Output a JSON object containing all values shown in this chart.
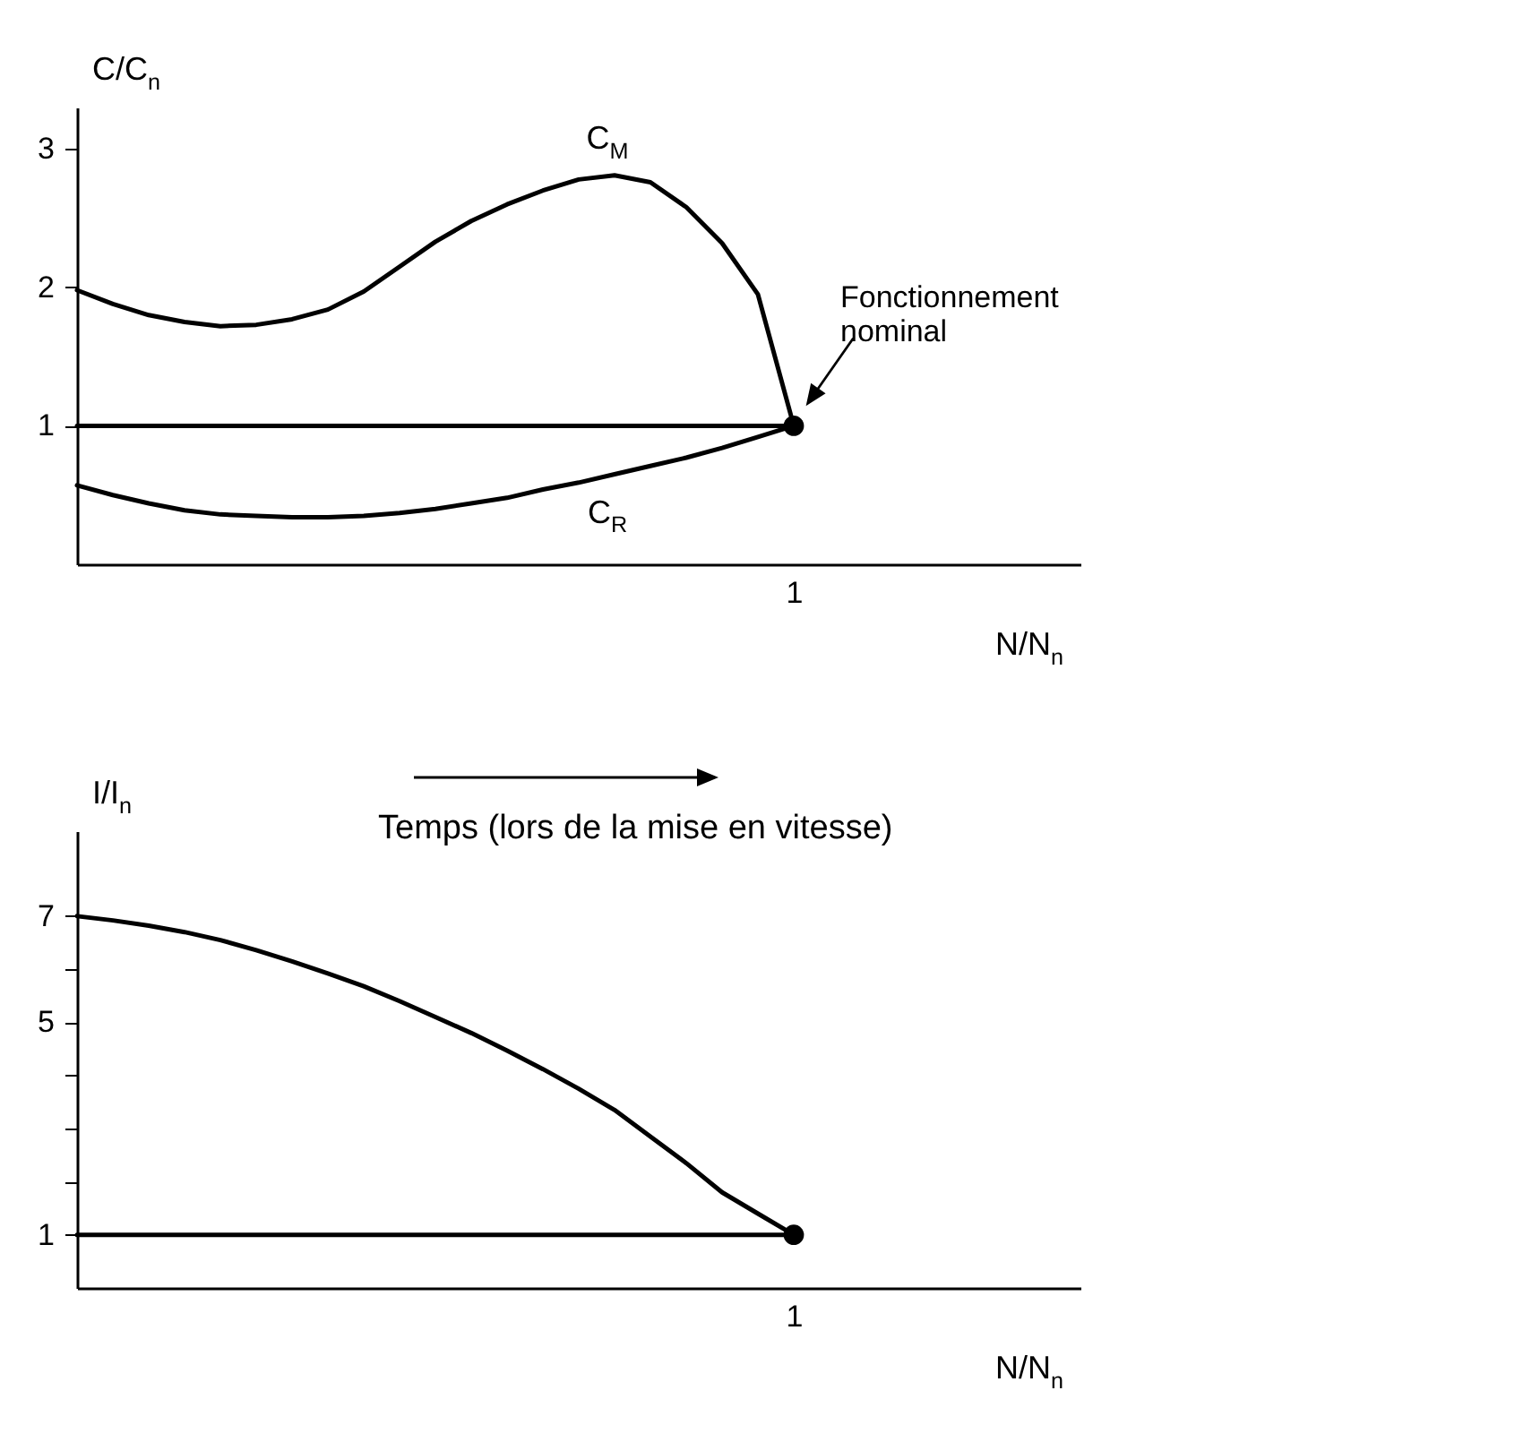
{
  "chart_data": [
    {
      "type": "line",
      "ylabel": "C/C$_{n}$",
      "xlabel": "N/N$_{n}$",
      "ylim": [
        0,
        3.3
      ],
      "yticks": [
        1,
        2,
        3
      ],
      "categories": [
        null,
        null,
        null,
        null,
        null,
        null,
        null,
        null,
        null,
        null,
        null,
        null,
        null,
        null,
        null,
        null,
        null,
        null,
        null,
        null,
        "1",
        null,
        null,
        null,
        null,
        null,
        null,
        null,
        null
      ],
      "annotations": [
        {
          "text": "Fonctionnement nominal",
          "x": "1",
          "y": 1
        }
      ],
      "series": [
        {
          "name": "C$_{M}$",
          "color": "#000000",
          "values": [
            1.98,
            1.88,
            1.8,
            1.75,
            1.72,
            1.73,
            1.77,
            1.84,
            1.97,
            2.15,
            2.33,
            2.48,
            2.6,
            2.7,
            2.78,
            2.81,
            2.76,
            2.58,
            2.32,
            1.95,
            1.0,
            null,
            null,
            null,
            null,
            null,
            null,
            null,
            null
          ]
        },
        {
          "name": "C$_{R}$",
          "color": "#000000",
          "values": [
            0.57,
            0.5,
            0.44,
            0.39,
            0.36,
            0.35,
            0.34,
            0.34,
            0.35,
            0.37,
            0.4,
            0.44,
            0.48,
            0.54,
            0.59,
            0.65,
            0.71,
            0.77,
            0.84,
            0.92,
            1.0,
            null,
            null,
            null,
            null,
            null,
            null,
            null,
            null
          ]
        },
        {
          "color": "#000000",
          "values": [
            1,
            1,
            1,
            1,
            1,
            1,
            1,
            1,
            1,
            1,
            1,
            1,
            1,
            1,
            1,
            1,
            1,
            1,
            1,
            1,
            1,
            null,
            null,
            null,
            null,
            null,
            null,
            null,
            null
          ]
        },
        {
          "type": "scatter",
          "color": "#000000",
          "x": [
            "1"
          ],
          "values": [
            1
          ]
        }
      ]
    },
    {
      "type": "line",
      "ylabel": "I/I$_{n}$",
      "xlabel": "N/N$_{n}$",
      "ylim": [
        0,
        8.6
      ],
      "yticks": [
        1,
        {
          "value": 2,
          "label": null
        },
        {
          "value": 3,
          "label": null
        },
        {
          "value": 4,
          "label": null
        },
        5,
        {
          "value": 6,
          "label": null
        },
        7
      ],
      "categories": [
        null,
        null,
        null,
        null,
        null,
        null,
        null,
        null,
        null,
        null,
        null,
        null,
        null,
        null,
        null,
        null,
        null,
        null,
        null,
        null,
        "1",
        null,
        null,
        null,
        null,
        null,
        null,
        null,
        null
      ],
      "annotations": [
        "Temps (lors de la mise en vitesse)"
      ],
      "series": [
        {
          "color": "#000000",
          "values": [
            7,
            6.92,
            6.82,
            6.7,
            6.55,
            6.36,
            6.15,
            5.92,
            5.68,
            5.4,
            5.1,
            4.8,
            4.47,
            4.12,
            3.75,
            3.35,
            2.85,
            2.35,
            1.8,
            1.4,
            1.0,
            null,
            null,
            null,
            null,
            null,
            null,
            null,
            null
          ]
        },
        {
          "color": "#000000",
          "values": [
            1,
            1,
            1,
            1,
            1,
            1,
            1,
            1,
            1,
            1,
            1,
            1,
            1,
            1,
            1,
            1,
            1,
            1,
            1,
            1,
            1,
            null,
            null,
            null,
            null,
            null,
            null,
            null,
            null
          ]
        },
        {
          "type": "scatter",
          "color": "#000000",
          "x": [
            "1"
          ],
          "values": [
            1
          ]
        }
      ]
    }
  ]
}
